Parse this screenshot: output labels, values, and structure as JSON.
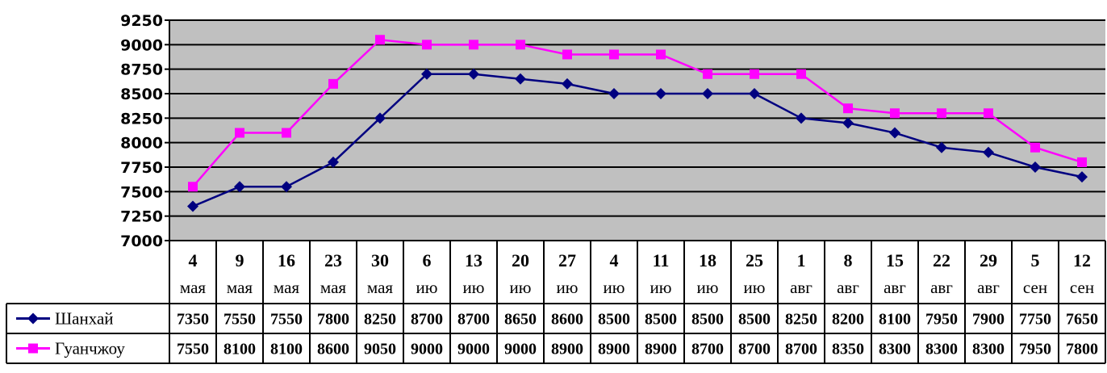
{
  "chart_data": {
    "type": "line",
    "title": "",
    "xlabel": "",
    "ylabel": "",
    "ylim": [
      7000,
      9250
    ],
    "yticks": [
      7000,
      7250,
      7500,
      7750,
      8000,
      8250,
      8500,
      8750,
      9000,
      9250
    ],
    "grid": true,
    "legend": "data-table",
    "categories": [
      {
        "day": "4",
        "month": "мая"
      },
      {
        "day": "9",
        "month": "мая"
      },
      {
        "day": "16",
        "month": "мая"
      },
      {
        "day": "23",
        "month": "мая"
      },
      {
        "day": "30",
        "month": "мая"
      },
      {
        "day": "6",
        "month": "ию"
      },
      {
        "day": "13",
        "month": "ию"
      },
      {
        "day": "20",
        "month": "ию"
      },
      {
        "day": "27",
        "month": "ию"
      },
      {
        "day": "4",
        "month": "ию"
      },
      {
        "day": "11",
        "month": "ию"
      },
      {
        "day": "18",
        "month": "ию"
      },
      {
        "day": "25",
        "month": "ию"
      },
      {
        "day": "1",
        "month": "авг"
      },
      {
        "day": "8",
        "month": "авг"
      },
      {
        "day": "15",
        "month": "авг"
      },
      {
        "day": "22",
        "month": "авг"
      },
      {
        "day": "29",
        "month": "авг"
      },
      {
        "day": "5",
        "month": "сен"
      },
      {
        "day": "12",
        "month": "сен"
      }
    ],
    "series": [
      {
        "name": "Шанхай",
        "color": "#000080",
        "marker": "diamond",
        "values": [
          7350,
          7550,
          7550,
          7800,
          8250,
          8700,
          8700,
          8650,
          8600,
          8500,
          8500,
          8500,
          8500,
          8250,
          8200,
          8100,
          7950,
          7900,
          7750,
          7650
        ]
      },
      {
        "name": "Гуанчжоу",
        "color": "#ff00ff",
        "marker": "square",
        "values": [
          7550,
          8100,
          8100,
          8600,
          9050,
          9000,
          9000,
          9000,
          8900,
          8900,
          8900,
          8700,
          8700,
          8700,
          8350,
          8300,
          8300,
          8300,
          7950,
          7800
        ]
      }
    ],
    "colors": {
      "plot_background": "#c0c0c0",
      "gridline": "#000000"
    }
  }
}
